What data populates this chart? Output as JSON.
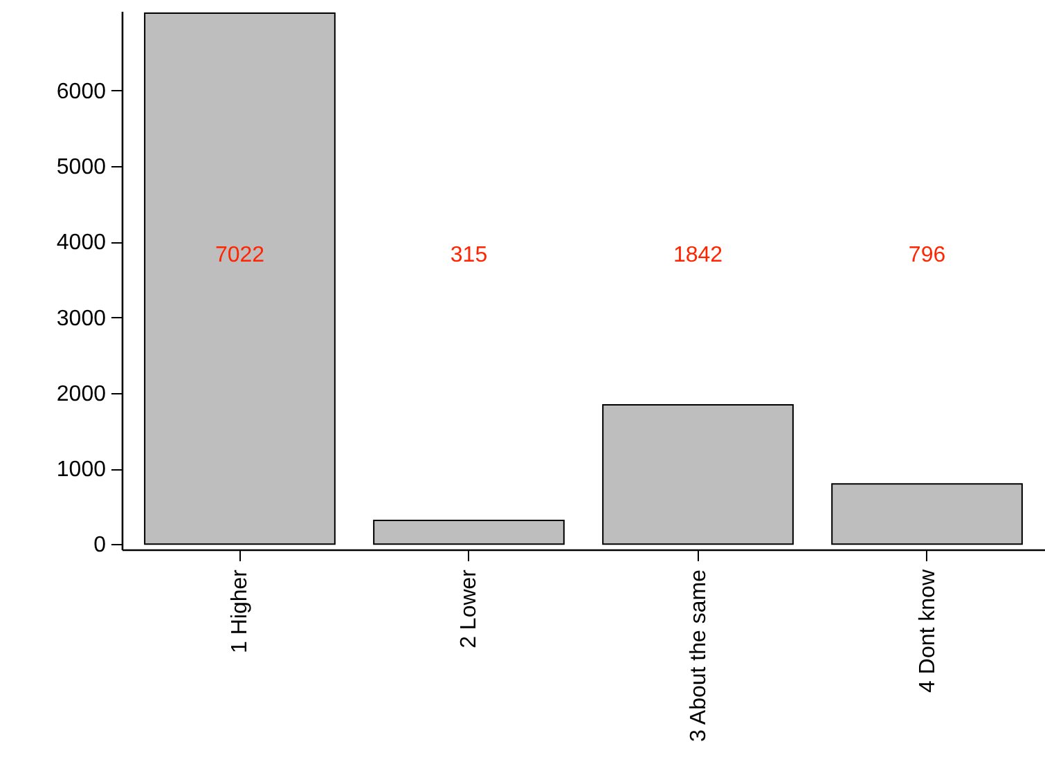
{
  "chart_data": {
    "type": "bar",
    "categories": [
      "1 Higher",
      "2 Lower",
      "3 About the same",
      "4 Dont know"
    ],
    "values": [
      7022,
      315,
      1842,
      796
    ],
    "color": "#bebebe",
    "annotations": [
      "7022",
      "315",
      "1842",
      "796"
    ],
    "ylim": [
      -70,
      7050
    ],
    "yticks": [
      0,
      1000,
      2000,
      3000,
      4000,
      5000,
      6000
    ]
  }
}
